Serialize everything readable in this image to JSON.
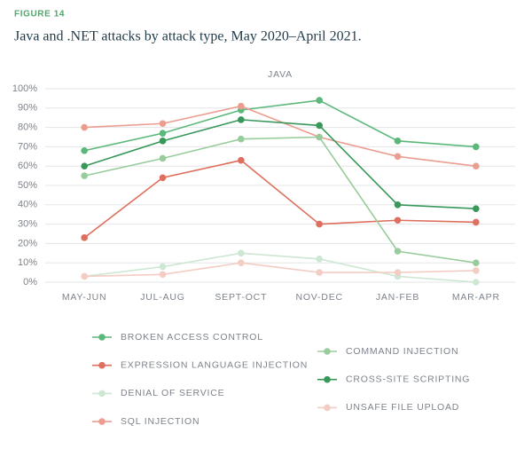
{
  "chart_data": {
    "type": "line",
    "figure_label": "FIGURE 14",
    "title": "Java and .NET attacks by attack type, May 2020–April 2021.",
    "subtitle": "JAVA",
    "categories": [
      "MAY-JUN",
      "JUL-AUG",
      "SEPT-OCT",
      "NOV-DEC",
      "JAN-FEB",
      "MAR-APR"
    ],
    "ylim": [
      0,
      100
    ],
    "yticks": [
      {
        "value": 0,
        "label": "0%"
      },
      {
        "value": 10,
        "label": "10%"
      },
      {
        "value": 20,
        "label": "20%"
      },
      {
        "value": 30,
        "label": "30%"
      },
      {
        "value": 40,
        "label": "40%"
      },
      {
        "value": 50,
        "label": "50%"
      },
      {
        "value": 60,
        "label": "60%"
      },
      {
        "value": 70,
        "label": "70%"
      },
      {
        "value": 80,
        "label": "80%"
      },
      {
        "value": 90,
        "label": "90%"
      },
      {
        "value": 100,
        "label": "100%"
      }
    ],
    "grid": true,
    "series": [
      {
        "name": "BROKEN ACCESS CONTROL",
        "color": "#5cb87a",
        "values": [
          68,
          77,
          89,
          94,
          73,
          70
        ]
      },
      {
        "name": "EXPRESSION LANGUAGE INJECTION",
        "color": "#de6f5e",
        "values": [
          23,
          54,
          63,
          30,
          32,
          31
        ]
      },
      {
        "name": "DENIAL OF SERVICE",
        "color": "#cde7d3",
        "values": [
          3,
          8,
          15,
          12,
          3,
          0
        ]
      },
      {
        "name": "SQL INJECTION",
        "color": "#eb9d90",
        "values": [
          80,
          82,
          91,
          75,
          65,
          60
        ]
      },
      {
        "name": "COMMAND INJECTION",
        "color": "#98cc9c",
        "values": [
          55,
          64,
          74,
          75,
          16,
          10
        ]
      },
      {
        "name": "CROSS-SITE SCRIPTING",
        "color": "#37985a",
        "values": [
          60,
          73,
          84,
          81,
          40,
          38
        ]
      },
      {
        "name": "UNSAFE FILE UPLOAD",
        "color": "#f3cdc3",
        "values": [
          3,
          4,
          10,
          5,
          5,
          6
        ]
      }
    ]
  }
}
